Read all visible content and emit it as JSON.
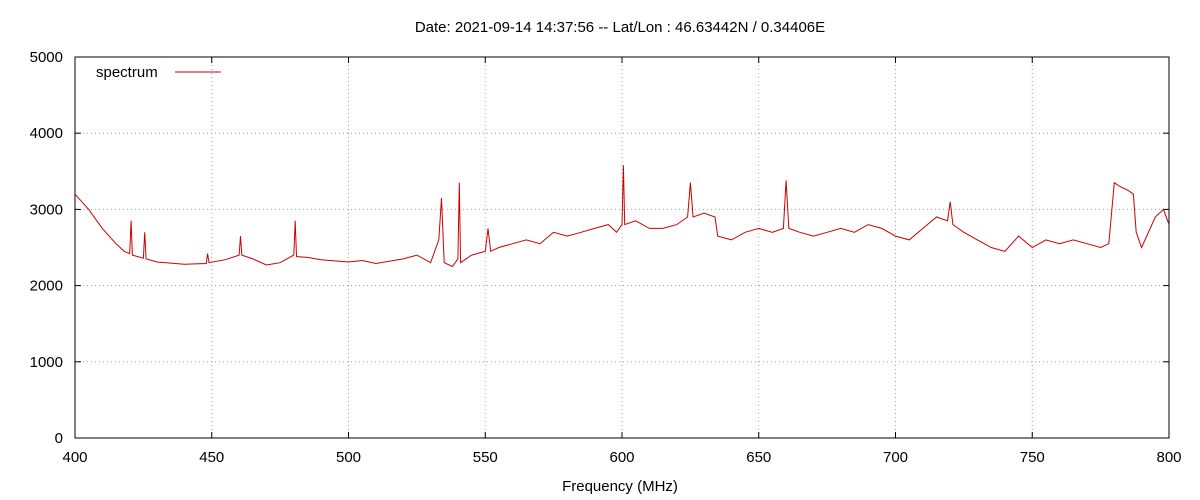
{
  "chart_data": {
    "type": "line",
    "title": "Date: 2021-09-14 14:37:56  --  Lat/Lon : 46.63442N / 0.34406E",
    "xlabel": "Frequency (MHz)",
    "ylabel": "",
    "xlim": [
      400,
      800
    ],
    "ylim": [
      0,
      5000
    ],
    "xticks": [
      400,
      450,
      500,
      550,
      600,
      650,
      700,
      750,
      800
    ],
    "yticks": [
      0,
      1000,
      2000,
      3000,
      4000,
      5000
    ],
    "grid": true,
    "legend": "top-left",
    "color": "#cc0000",
    "series": [
      {
        "name": "spectrum",
        "x": [
          400,
          405,
          410,
          415,
          418,
          420,
          420.5,
          421,
          425,
          425.5,
          426,
          430,
          440,
          448,
          448.5,
          449,
          455,
          460,
          460.5,
          461,
          465,
          470,
          475,
          480,
          480.5,
          481,
          485,
          490,
          500,
          505,
          510,
          520,
          525,
          530,
          533,
          534,
          535,
          538,
          540,
          540.5,
          541,
          545,
          550,
          551,
          552,
          555,
          560,
          565,
          570,
          575,
          580,
          585,
          590,
          595,
          598,
          600,
          600.5,
          601,
          605,
          610,
          615,
          620,
          624,
          625,
          626,
          630,
          634,
          635,
          640,
          645,
          650,
          655,
          659,
          660,
          661,
          665,
          670,
          675,
          680,
          685,
          690,
          695,
          700,
          705,
          710,
          715,
          719,
          720,
          721,
          725,
          730,
          735,
          740,
          745,
          750,
          755,
          760,
          765,
          770,
          775,
          778,
          780,
          782,
          785,
          787,
          788,
          790,
          795,
          798,
          800
        ],
        "values": [
          3200,
          3000,
          2750,
          2550,
          2450,
          2420,
          2850,
          2400,
          2360,
          2700,
          2350,
          2310,
          2280,
          2290,
          2420,
          2300,
          2340,
          2400,
          2650,
          2400,
          2350,
          2270,
          2300,
          2400,
          2850,
          2380,
          2370,
          2340,
          2310,
          2330,
          2290,
          2350,
          2400,
          2300,
          2600,
          3150,
          2300,
          2250,
          2350,
          3350,
          2300,
          2400,
          2450,
          2750,
          2450,
          2500,
          2550,
          2600,
          2550,
          2700,
          2650,
          2700,
          2750,
          2800,
          2700,
          2800,
          3580,
          2800,
          2850,
          2750,
          2750,
          2800,
          2900,
          3350,
          2900,
          2950,
          2900,
          2650,
          2600,
          2700,
          2750,
          2700,
          2750,
          3380,
          2750,
          2700,
          2650,
          2700,
          2750,
          2700,
          2800,
          2750,
          2650,
          2600,
          2750,
          2900,
          2850,
          3100,
          2800,
          2700,
          2600,
          2500,
          2450,
          2650,
          2500,
          2600,
          2550,
          2600,
          2550,
          2500,
          2550,
          3350,
          3300,
          3250,
          3200,
          2700,
          2500,
          2900,
          3000,
          2800
        ]
      }
    ]
  }
}
